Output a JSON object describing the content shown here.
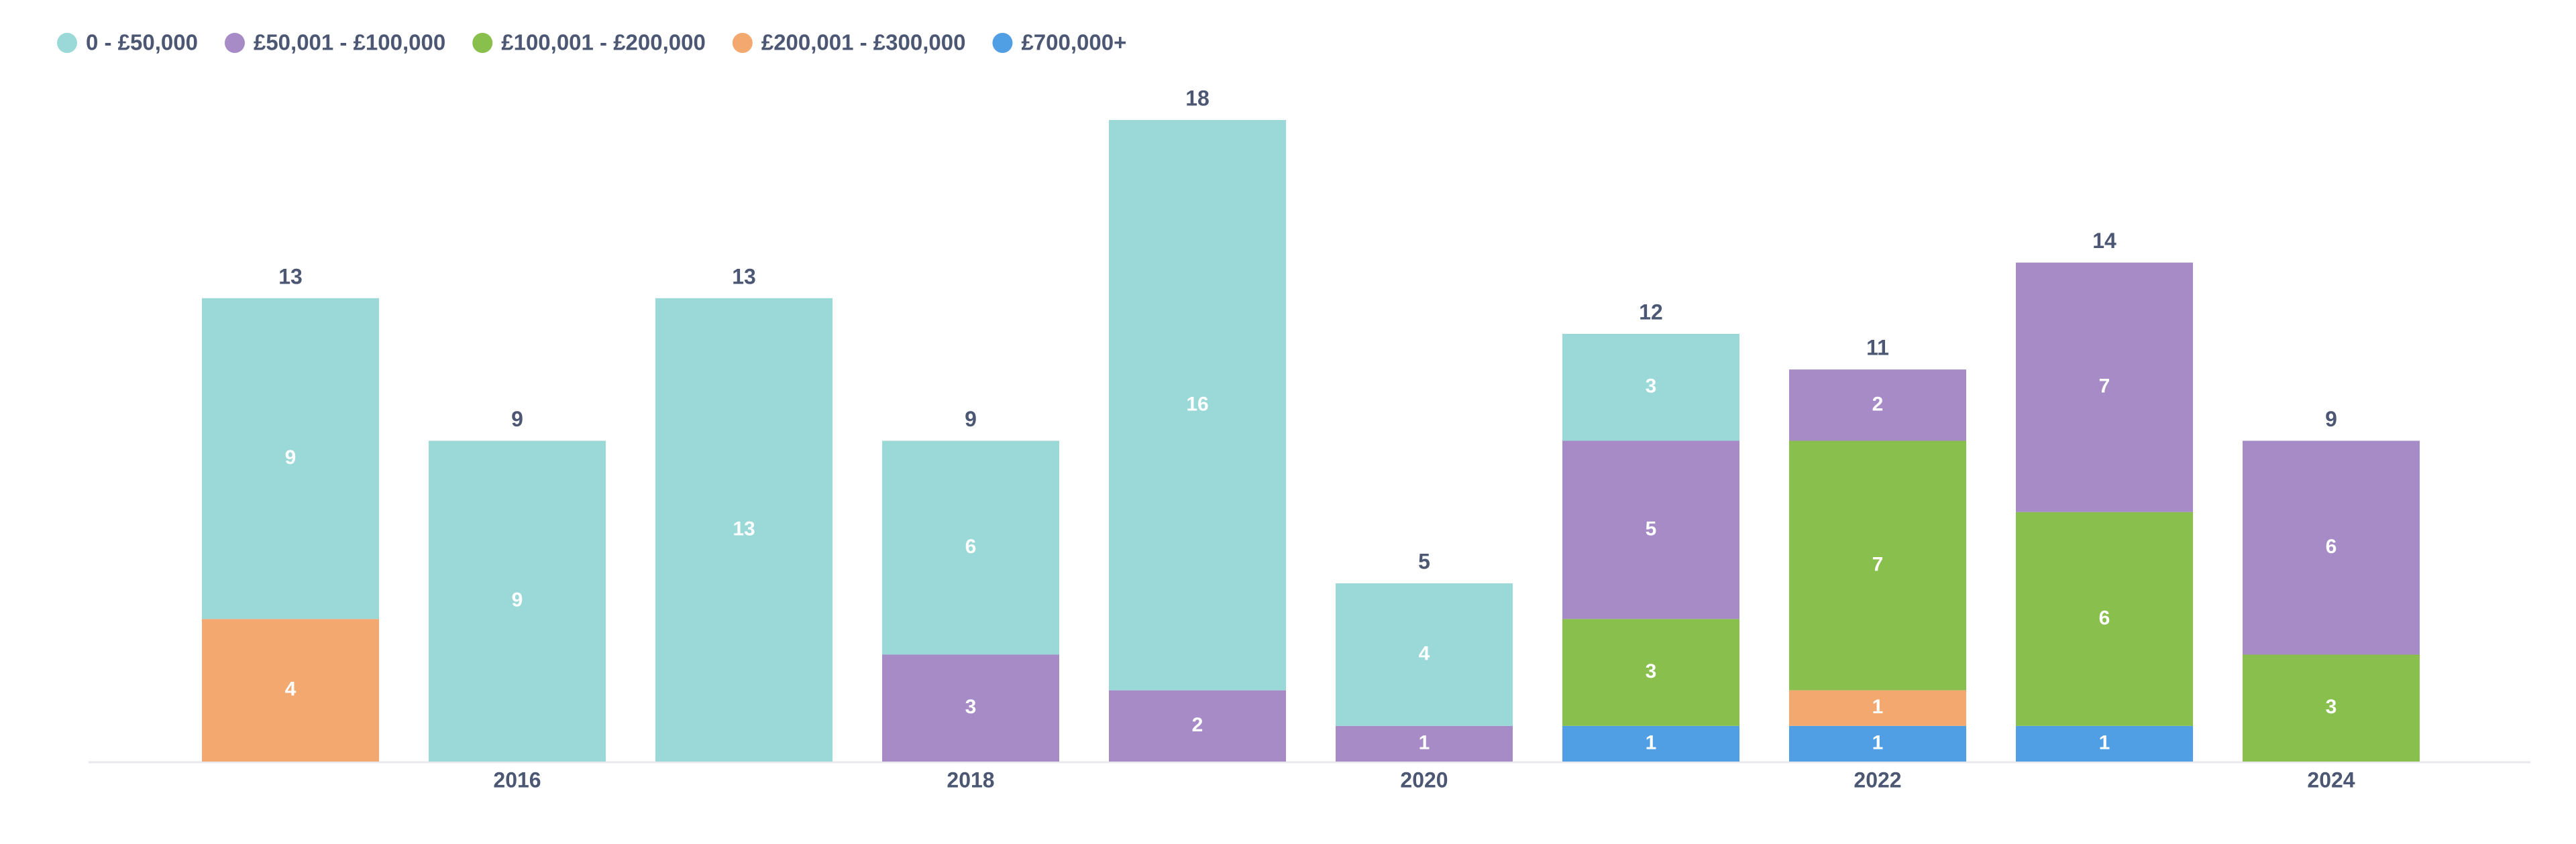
{
  "chart_data": {
    "type": "stacked-bar",
    "categories": [
      null,
      "2016",
      null,
      "2018",
      null,
      "2020",
      null,
      "2022",
      null,
      "2024"
    ],
    "series": [
      {
        "name": "0 - £50,000",
        "color": "#9ad9d8",
        "values": [
          9,
          9,
          13,
          6,
          16,
          4,
          3,
          null,
          null,
          null
        ]
      },
      {
        "name": "£50,001 - £100,000",
        "color": "#a78bc6",
        "values": [
          null,
          null,
          null,
          3,
          2,
          1,
          5,
          2,
          7,
          6
        ]
      },
      {
        "name": "£100,001 - £200,000",
        "color": "#88bf4d",
        "values": [
          null,
          null,
          null,
          null,
          null,
          null,
          3,
          7,
          6,
          3
        ]
      },
      {
        "name": "£200,001 - £300,000",
        "color": "#f2a86f",
        "values": [
          4,
          null,
          null,
          null,
          null,
          null,
          null,
          1,
          null,
          null
        ]
      },
      {
        "name": "£700,000+",
        "color": "#509ee3",
        "values": [
          null,
          null,
          null,
          null,
          null,
          null,
          1,
          1,
          1,
          null
        ]
      }
    ],
    "totals": [
      13,
      9,
      13,
      9,
      18,
      5,
      12,
      11,
      14,
      9
    ],
    "legend": "top-left"
  }
}
